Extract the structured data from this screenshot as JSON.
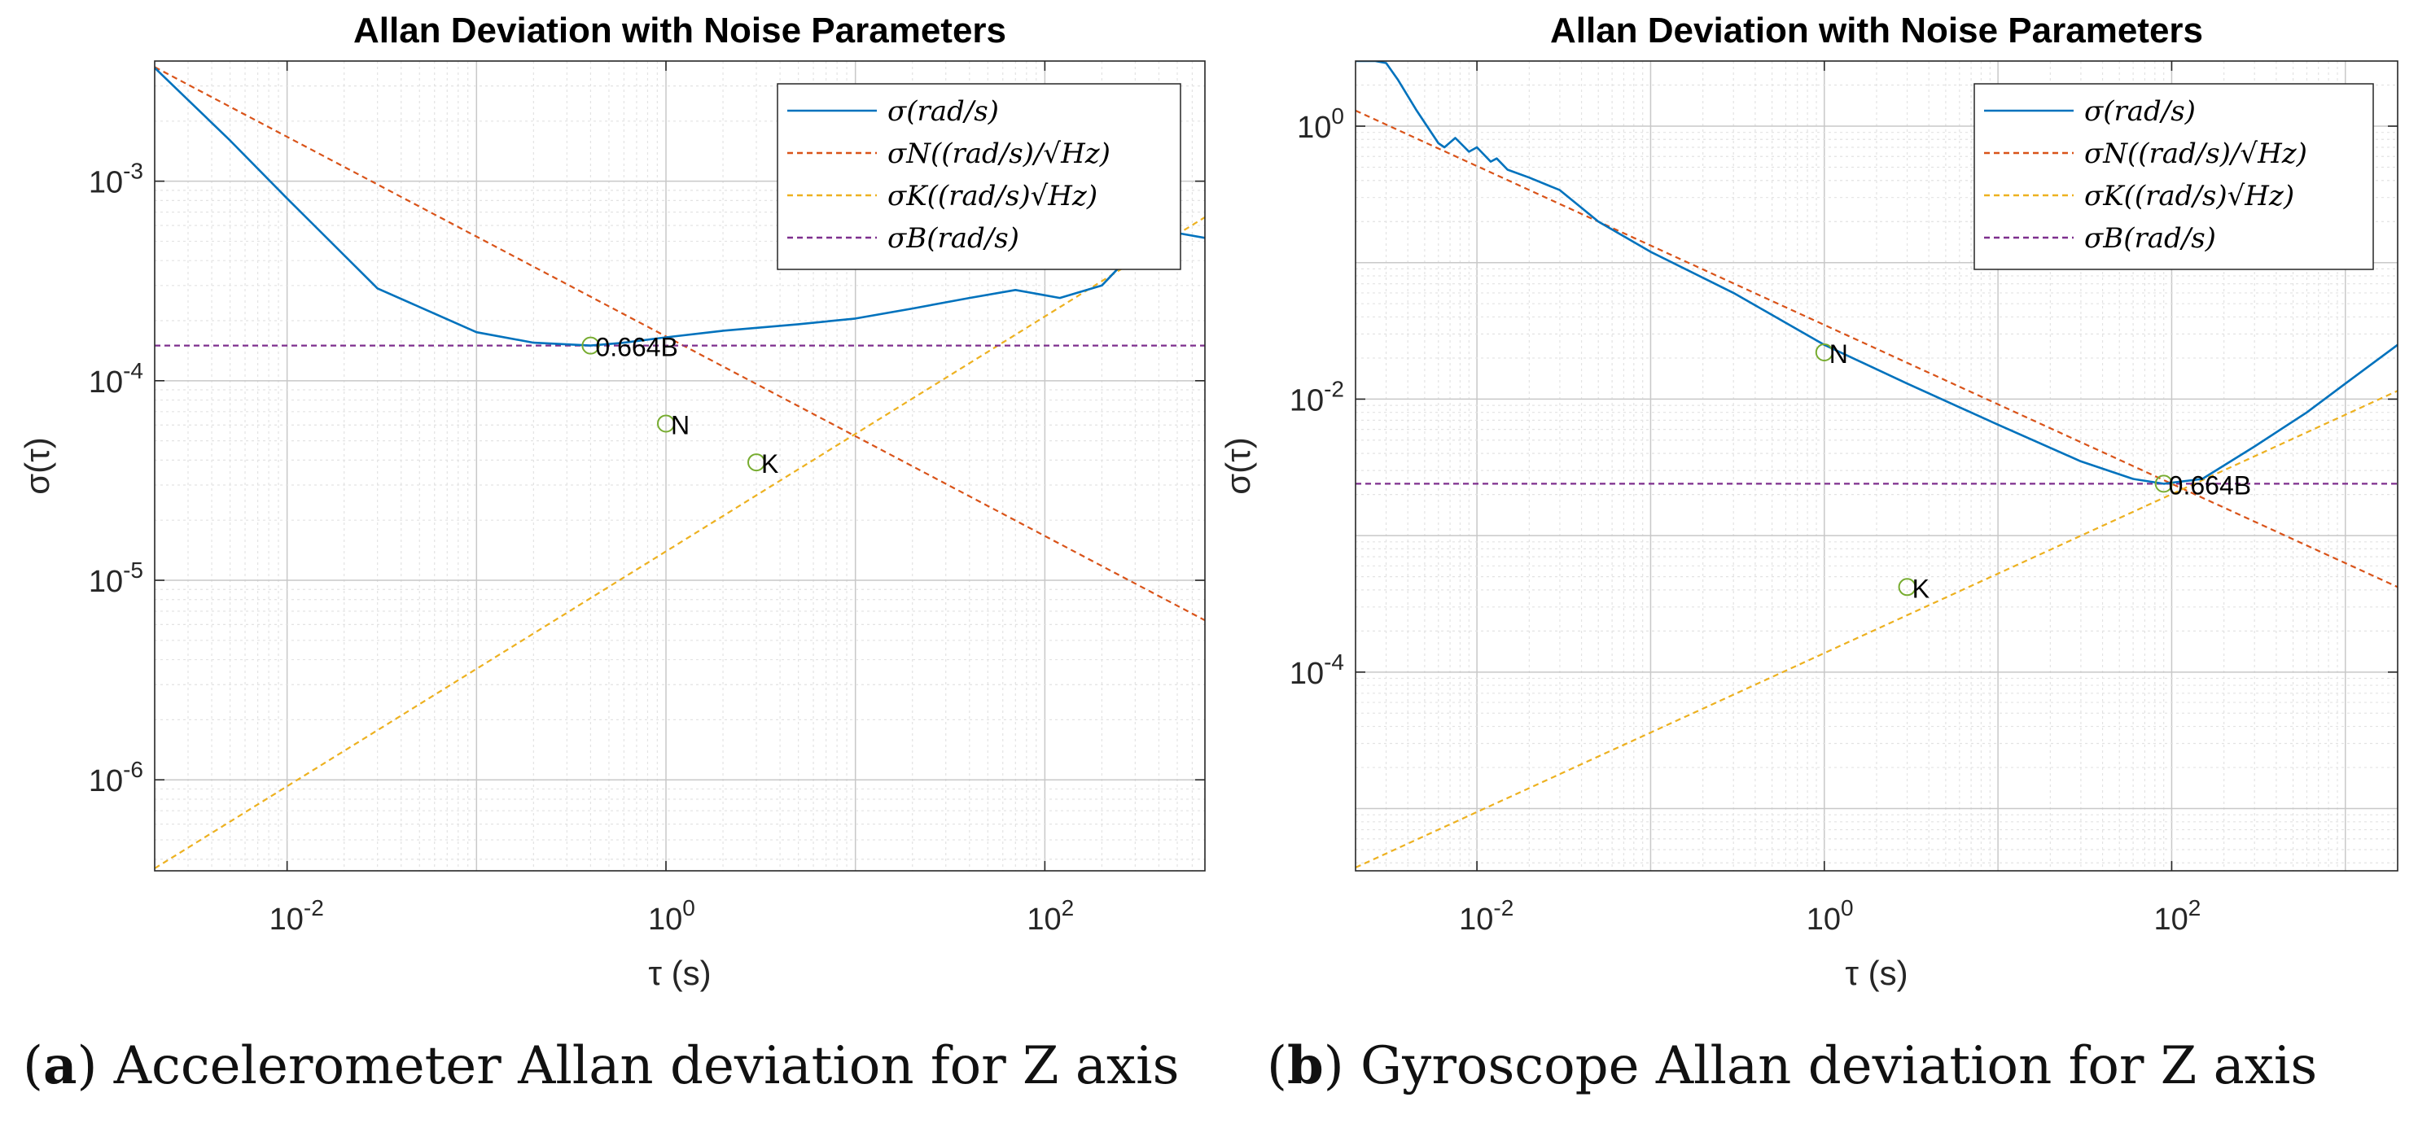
{
  "chart_data": [
    {
      "type": "line",
      "id": "a",
      "title": "Allan Deviation with Noise Parameters",
      "xlabel": "τ (s)",
      "ylabel": "σ(τ)",
      "xscale": "log",
      "yscale": "log",
      "xlim": [
        0.002,
        700
      ],
      "ylim": [
        3.5e-07,
        0.004
      ],
      "xticks": [
        {
          "exp": "-2",
          "value": 0.01
        },
        {
          "exp": "0",
          "value": 1
        },
        {
          "exp": "2",
          "value": 100
        }
      ],
      "yticks": [
        {
          "exp": "-6",
          "value": 1e-06
        },
        {
          "exp": "-5",
          "value": 1e-05
        },
        {
          "exp": "-4",
          "value": 0.0001
        },
        {
          "exp": "-3",
          "value": 0.001
        }
      ],
      "grid": true,
      "legend_position": "top-right",
      "legend": [
        {
          "label": "σ(rad/s)",
          "color": "#0072BD",
          "dash": "solid"
        },
        {
          "label": "σN((rad/s)/√Hz)",
          "color": "#D95319",
          "dash": "dashed"
        },
        {
          "label": "σK((rad/s)√Hz)",
          "color": "#EDB120",
          "dash": "dashed"
        },
        {
          "label": "σB(rad/s)",
          "color": "#7E2F8E",
          "dash": "dashed"
        }
      ],
      "series": [
        {
          "name": "σ",
          "x": [
            0.002,
            0.005,
            0.01,
            0.03,
            0.1,
            0.2,
            0.4,
            0.6,
            1,
            2,
            5,
            10,
            20,
            40,
            70,
            120,
            200,
            300,
            450,
            700
          ],
          "y": [
            0.0037,
            0.0016,
            0.00082,
            0.00029,
            0.000175,
            0.000155,
            0.00015,
            0.000155,
            0.000165,
            0.000178,
            0.000192,
            0.000205,
            0.00023,
            0.00026,
            0.000285,
            0.00026,
            0.0003,
            0.00045,
            0.00056,
            0.00052
          ]
        },
        {
          "name": "σN",
          "x": [
            0.002,
            700
          ],
          "y": [
            0.00373,
            6.3e-06
          ]
        },
        {
          "name": "σK",
          "x": [
            0.002,
            700
          ],
          "y": [
            3.6e-07,
            0.00066
          ]
        },
        {
          "name": "σB",
          "x": [
            0.002,
            700
          ],
          "y": [
            0.00015,
            0.00015
          ]
        }
      ],
      "annotations": [
        {
          "text": "0.664B",
          "x": 0.4,
          "y": 0.00015
        },
        {
          "text": "N",
          "x": 1,
          "y": 6.1e-05
        },
        {
          "text": "K",
          "x": 3,
          "y": 3.9e-05
        }
      ]
    },
    {
      "type": "line",
      "id": "b",
      "title": "Allan Deviation with Noise Parameters",
      "xlabel": "τ (s)",
      "ylabel": "σ(τ)",
      "xscale": "log",
      "yscale": "log",
      "xlim": [
        0.002,
        2000
      ],
      "ylim": [
        3.5e-06,
        3
      ],
      "xticks": [
        {
          "exp": "-2",
          "value": 0.01
        },
        {
          "exp": "0",
          "value": 1
        },
        {
          "exp": "2",
          "value": 100
        }
      ],
      "yticks": [
        {
          "exp": "-4",
          "value": 0.0001
        },
        {
          "exp": "-2",
          "value": 0.01
        },
        {
          "exp": "0",
          "value": 1
        }
      ],
      "grid": true,
      "legend_position": "top-right",
      "legend": [
        {
          "label": "σ(rad/s)",
          "color": "#0072BD",
          "dash": "solid"
        },
        {
          "label": "σN((rad/s)/√Hz)",
          "color": "#D95319",
          "dash": "dashed"
        },
        {
          "label": "σK((rad/s)√Hz)",
          "color": "#EDB120",
          "dash": "dashed"
        },
        {
          "label": "σB(rad/s)",
          "color": "#7E2F8E",
          "dash": "dashed"
        }
      ],
      "series": [
        {
          "name": "σ",
          "x": [
            0.002,
            0.0026,
            0.003,
            0.0035,
            0.0045,
            0.006,
            0.0065,
            0.0075,
            0.009,
            0.01,
            0.012,
            0.013,
            0.015,
            0.02,
            0.03,
            0.05,
            0.1,
            0.3,
            1,
            3,
            10,
            30,
            60,
            90,
            150,
            300,
            600,
            1000,
            2000
          ],
          "y": [
            3,
            3,
            2.9,
            2.2,
            1.3,
            0.75,
            0.7,
            0.82,
            0.65,
            0.7,
            0.55,
            0.58,
            0.48,
            0.42,
            0.34,
            0.2,
            0.12,
            0.06,
            0.025,
            0.013,
            0.0065,
            0.0035,
            0.0026,
            0.0024,
            0.0026,
            0.0045,
            0.008,
            0.013,
            0.025
          ]
        },
        {
          "name": "σN",
          "x": [
            0.002,
            2000
          ],
          "y": [
            1.3,
            0.00042
          ]
        },
        {
          "name": "σK",
          "x": [
            0.002,
            2000
          ],
          "y": [
            3.7e-06,
            0.0115
          ]
        },
        {
          "name": "σB",
          "x": [
            0.002,
            2000
          ],
          "y": [
            0.0024,
            0.0024
          ]
        }
      ],
      "annotations": [
        {
          "text": "N",
          "x": 1,
          "y": 0.022
        },
        {
          "text": "0.664B",
          "x": 90,
          "y": 0.0024
        },
        {
          "text": "K",
          "x": 3,
          "y": 0.00042
        }
      ]
    }
  ],
  "captions": [
    {
      "label": "a",
      "text": "Accelerometer Allan deviation for Z axis"
    },
    {
      "label": "b",
      "text": "Gyroscope Allan deviation for Z axis"
    }
  ]
}
